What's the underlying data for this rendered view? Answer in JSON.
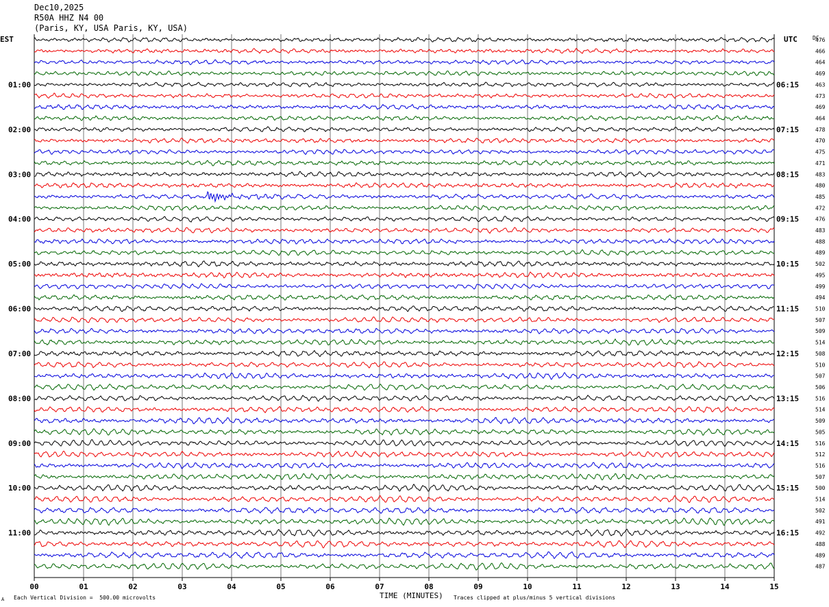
{
  "header": {
    "date": "Dec10,2025",
    "station": "R50A HHZ N4 00",
    "location": "(Paris, KY, USA Paris, KY, USA)"
  },
  "footer": {
    "scale_note": "Each Vertical Division =  500.00 microvolts",
    "clip_note": "Traces clipped at plus/minus 5 vertical divisions",
    "corner_mark": "A"
  },
  "colors": {
    "trace_cycle": [
      "#000000",
      "#ee0000",
      "#0000dd",
      "#006600"
    ],
    "grid": "#555555"
  },
  "chart_data": {
    "type": "line",
    "description_type": "helicorder seismogram",
    "xlabel": "TIME (MINUTES)",
    "x_ticks": [
      "00",
      "01",
      "02",
      "03",
      "04",
      "05",
      "06",
      "07",
      "08",
      "09",
      "10",
      "11",
      "12",
      "13",
      "14",
      "15"
    ],
    "xlim": [
      0,
      15
    ],
    "left_axis_title": "EST",
    "right_axis_title": "UTC",
    "dc_header": "DC",
    "est_hour_labels": [
      "01:00",
      "02:00",
      "03:00",
      "04:00",
      "05:00",
      "06:00",
      "07:00",
      "08:00",
      "09:00",
      "10:00",
      "11:00"
    ],
    "utc_hour_labels": [
      "06:15",
      "07:15",
      "08:15",
      "09:15",
      "10:15",
      "11:15",
      "12:15",
      "13:15",
      "14:15",
      "15:15",
      "16:15"
    ],
    "dc_offsets": [
      476,
      466,
      464,
      469,
      463,
      473,
      469,
      464,
      478,
      470,
      475,
      471,
      483,
      480,
      485,
      472,
      476,
      483,
      488,
      489,
      502,
      495,
      499,
      494,
      510,
      507,
      509,
      514,
      508,
      510,
      507,
      506,
      516,
      514,
      509,
      505,
      516,
      512,
      516,
      507,
      500,
      514,
      502,
      491,
      492,
      488,
      489,
      487
    ],
    "minutes_per_line": 15,
    "event": {
      "line": 14,
      "minute": 3.5
    }
  }
}
